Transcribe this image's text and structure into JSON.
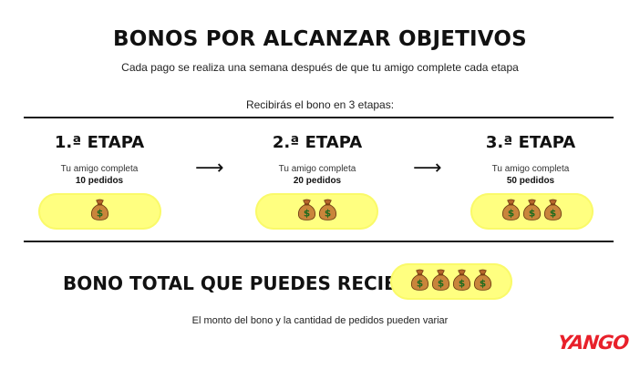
{
  "header": {
    "title": "BONOS POR ALCANZAR OBJETIVOS",
    "subtitle": "Cada pago se realiza una semana después de que tu amigo complete cada etapa"
  },
  "intro_text": "Recibirás el bono en 3 etapas:",
  "stages": [
    {
      "title": "1.ª ETAPA",
      "description": "Tu amigo completa",
      "orders": "10 pedidos",
      "bags": 1
    },
    {
      "title": "2.ª ETAPA",
      "description": "Tu amigo completa",
      "orders": "20 pedidos",
      "bags": 2
    },
    {
      "title": "3.ª ETAPA",
      "description": "Tu amigo completa",
      "orders": "50 pedidos",
      "bags": 3
    }
  ],
  "arrow_glyph": "⟶",
  "total": {
    "label": "BONO TOTAL QUE PUEDES RECIBIR",
    "bags": 4
  },
  "footer_note": "El monto del bono y la cantidad de pedidos pueden variar",
  "brand": {
    "logo_text": "YANGO",
    "logo_color": "#e8202a",
    "highlight_color": "#ffff80"
  },
  "icons": {
    "money_bag": "money-bag-icon"
  }
}
